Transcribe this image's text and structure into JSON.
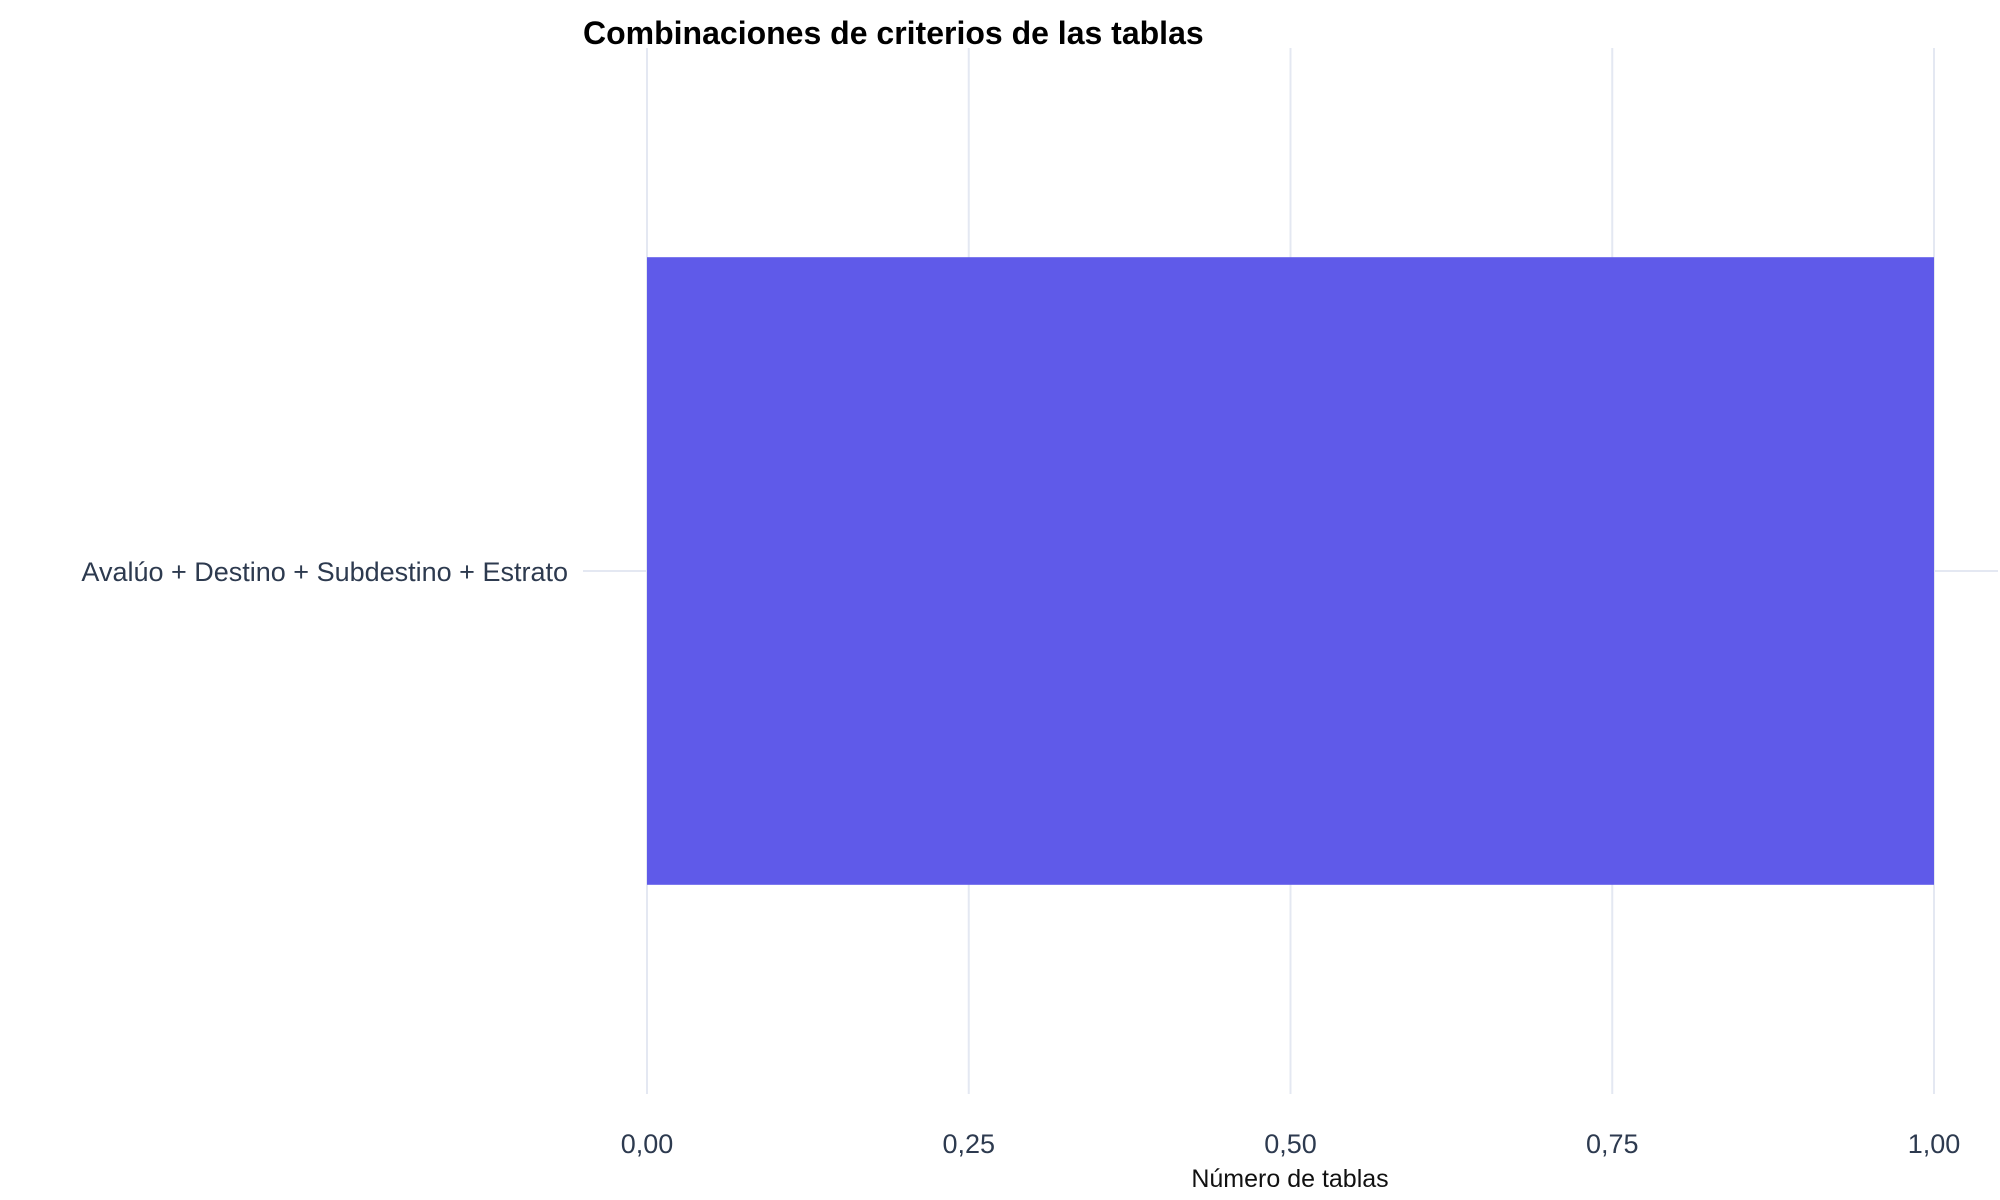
{
  "chart_data": {
    "type": "bar",
    "orientation": "horizontal",
    "title": "Combinaciones de criterios de las tablas",
    "xlabel": "Número de tablas",
    "ylabel": "",
    "categories": [
      "Avalúo + Destino + Subdestino + Estrato"
    ],
    "values": [
      1
    ],
    "xlim": [
      0,
      1
    ],
    "xticks": [
      0,
      0.25,
      0.5,
      0.75,
      1
    ],
    "xtick_labels": [
      "0,00",
      "0,25",
      "0,50",
      "0,75",
      "1,00"
    ],
    "grid": true,
    "legend": "none",
    "colors": {
      "bar": "#5f5ae9",
      "grid": "#e4e8f2",
      "tick_text": "#2d3a4f",
      "title_text": "#000000"
    }
  }
}
